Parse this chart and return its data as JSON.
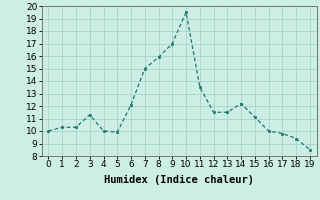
{
  "x": [
    0,
    1,
    2,
    3,
    4,
    5,
    6,
    7,
    8,
    9,
    10,
    11,
    12,
    13,
    14,
    15,
    16,
    17,
    18,
    19
  ],
  "y": [
    10.0,
    10.3,
    10.3,
    11.3,
    10.0,
    9.9,
    12.1,
    15.0,
    15.9,
    17.0,
    19.5,
    13.5,
    11.5,
    11.5,
    12.2,
    11.1,
    10.0,
    9.8,
    9.4,
    8.5
  ],
  "line_color": "#1a7a6a",
  "marker_color": "#1a7a6a",
  "bg_color": "#cceee4",
  "grid_color": "#aad8cc",
  "xlabel": "Humidex (Indice chaleur)",
  "xlim": [
    -0.5,
    19.5
  ],
  "ylim": [
    8,
    20
  ],
  "yticks": [
    8,
    9,
    10,
    11,
    12,
    13,
    14,
    15,
    16,
    17,
    18,
    19,
    20
  ],
  "xticks": [
    0,
    1,
    2,
    3,
    4,
    5,
    6,
    7,
    8,
    9,
    10,
    11,
    12,
    13,
    14,
    15,
    16,
    17,
    18,
    19
  ],
  "xlabel_fontsize": 7.5,
  "tick_fontsize": 6.5
}
